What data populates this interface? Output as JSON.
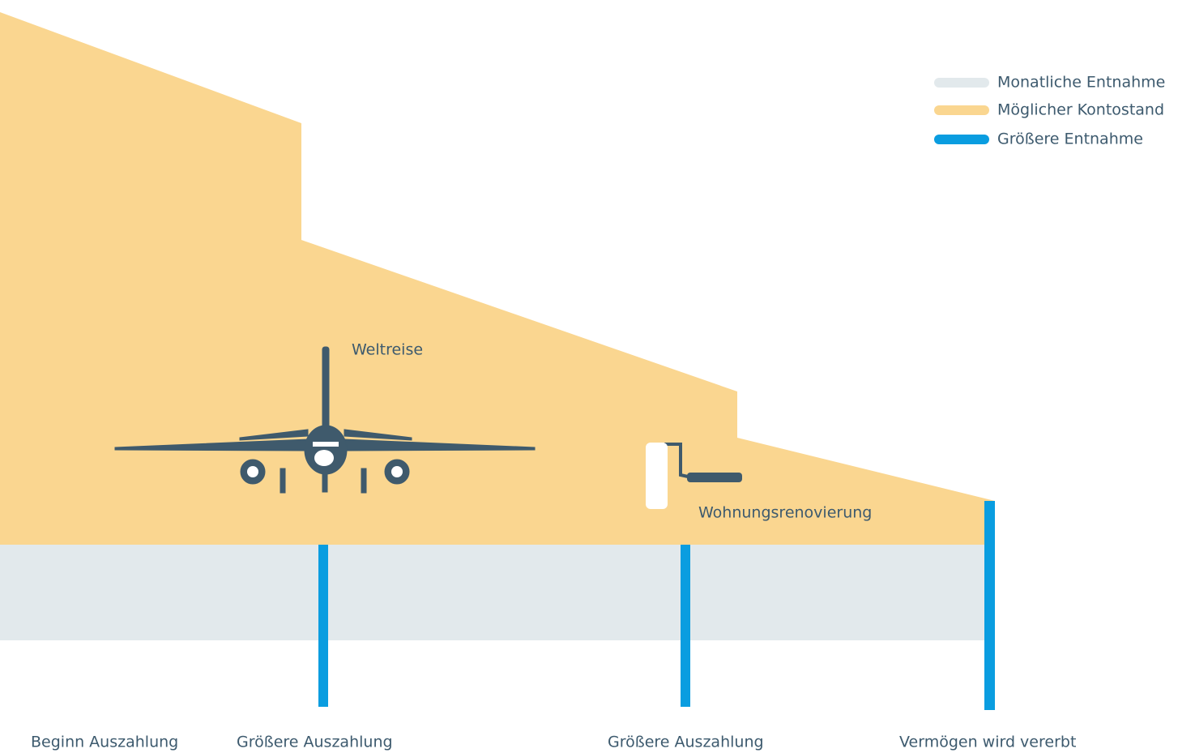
{
  "legend": [
    "Monatliche Entnahme",
    "Möglicher Kontostand",
    "Größere Entnahme"
  ],
  "annotations": [
    "Weltreise",
    "Wohnungsrenovierung"
  ],
  "timeline": [
    "Beginn Auszahlung",
    "Größere Auszahlung",
    "Größere Auszahlung",
    "Vermögen wird vererbt"
  ]
}
